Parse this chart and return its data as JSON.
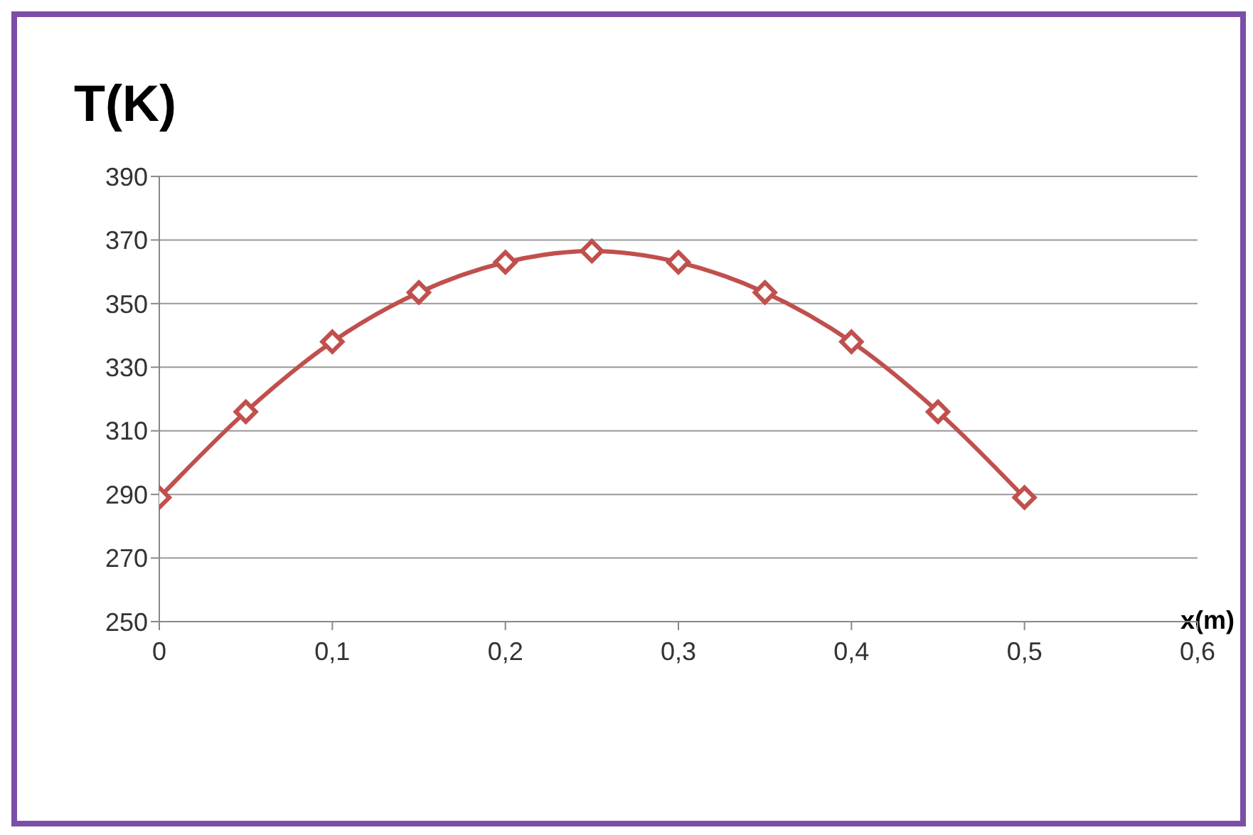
{
  "chart_data": {
    "type": "line",
    "xlabel": "x(m)",
    "ylabel": "T(K)",
    "x": [
      0,
      0.05,
      0.1,
      0.15,
      0.2,
      0.25,
      0.3,
      0.35,
      0.4,
      0.45,
      0.5
    ],
    "series": [
      {
        "color": "#c0504d",
        "values": [
          289,
          316,
          338,
          353.5,
          363,
          366.5,
          363,
          353.5,
          338,
          316,
          289
        ]
      }
    ],
    "xlim": [
      0,
      0.6
    ],
    "xticks": [
      0,
      {
        "value": 0.1,
        "label": "0,1"
      },
      {
        "value": 0.2,
        "label": "0,2"
      },
      {
        "value": 0.3,
        "label": "0,3"
      },
      {
        "value": 0.4,
        "label": "0,4"
      },
      {
        "value": 0.5,
        "label": "0,5"
      },
      {
        "value": 0.6,
        "label": "0,6"
      }
    ],
    "ylim": [
      250,
      390
    ],
    "yticks": [
      250,
      270,
      290,
      310,
      330,
      350,
      370,
      390
    ],
    "grid": "y",
    "marker": "diamond",
    "line_style": "solid"
  }
}
